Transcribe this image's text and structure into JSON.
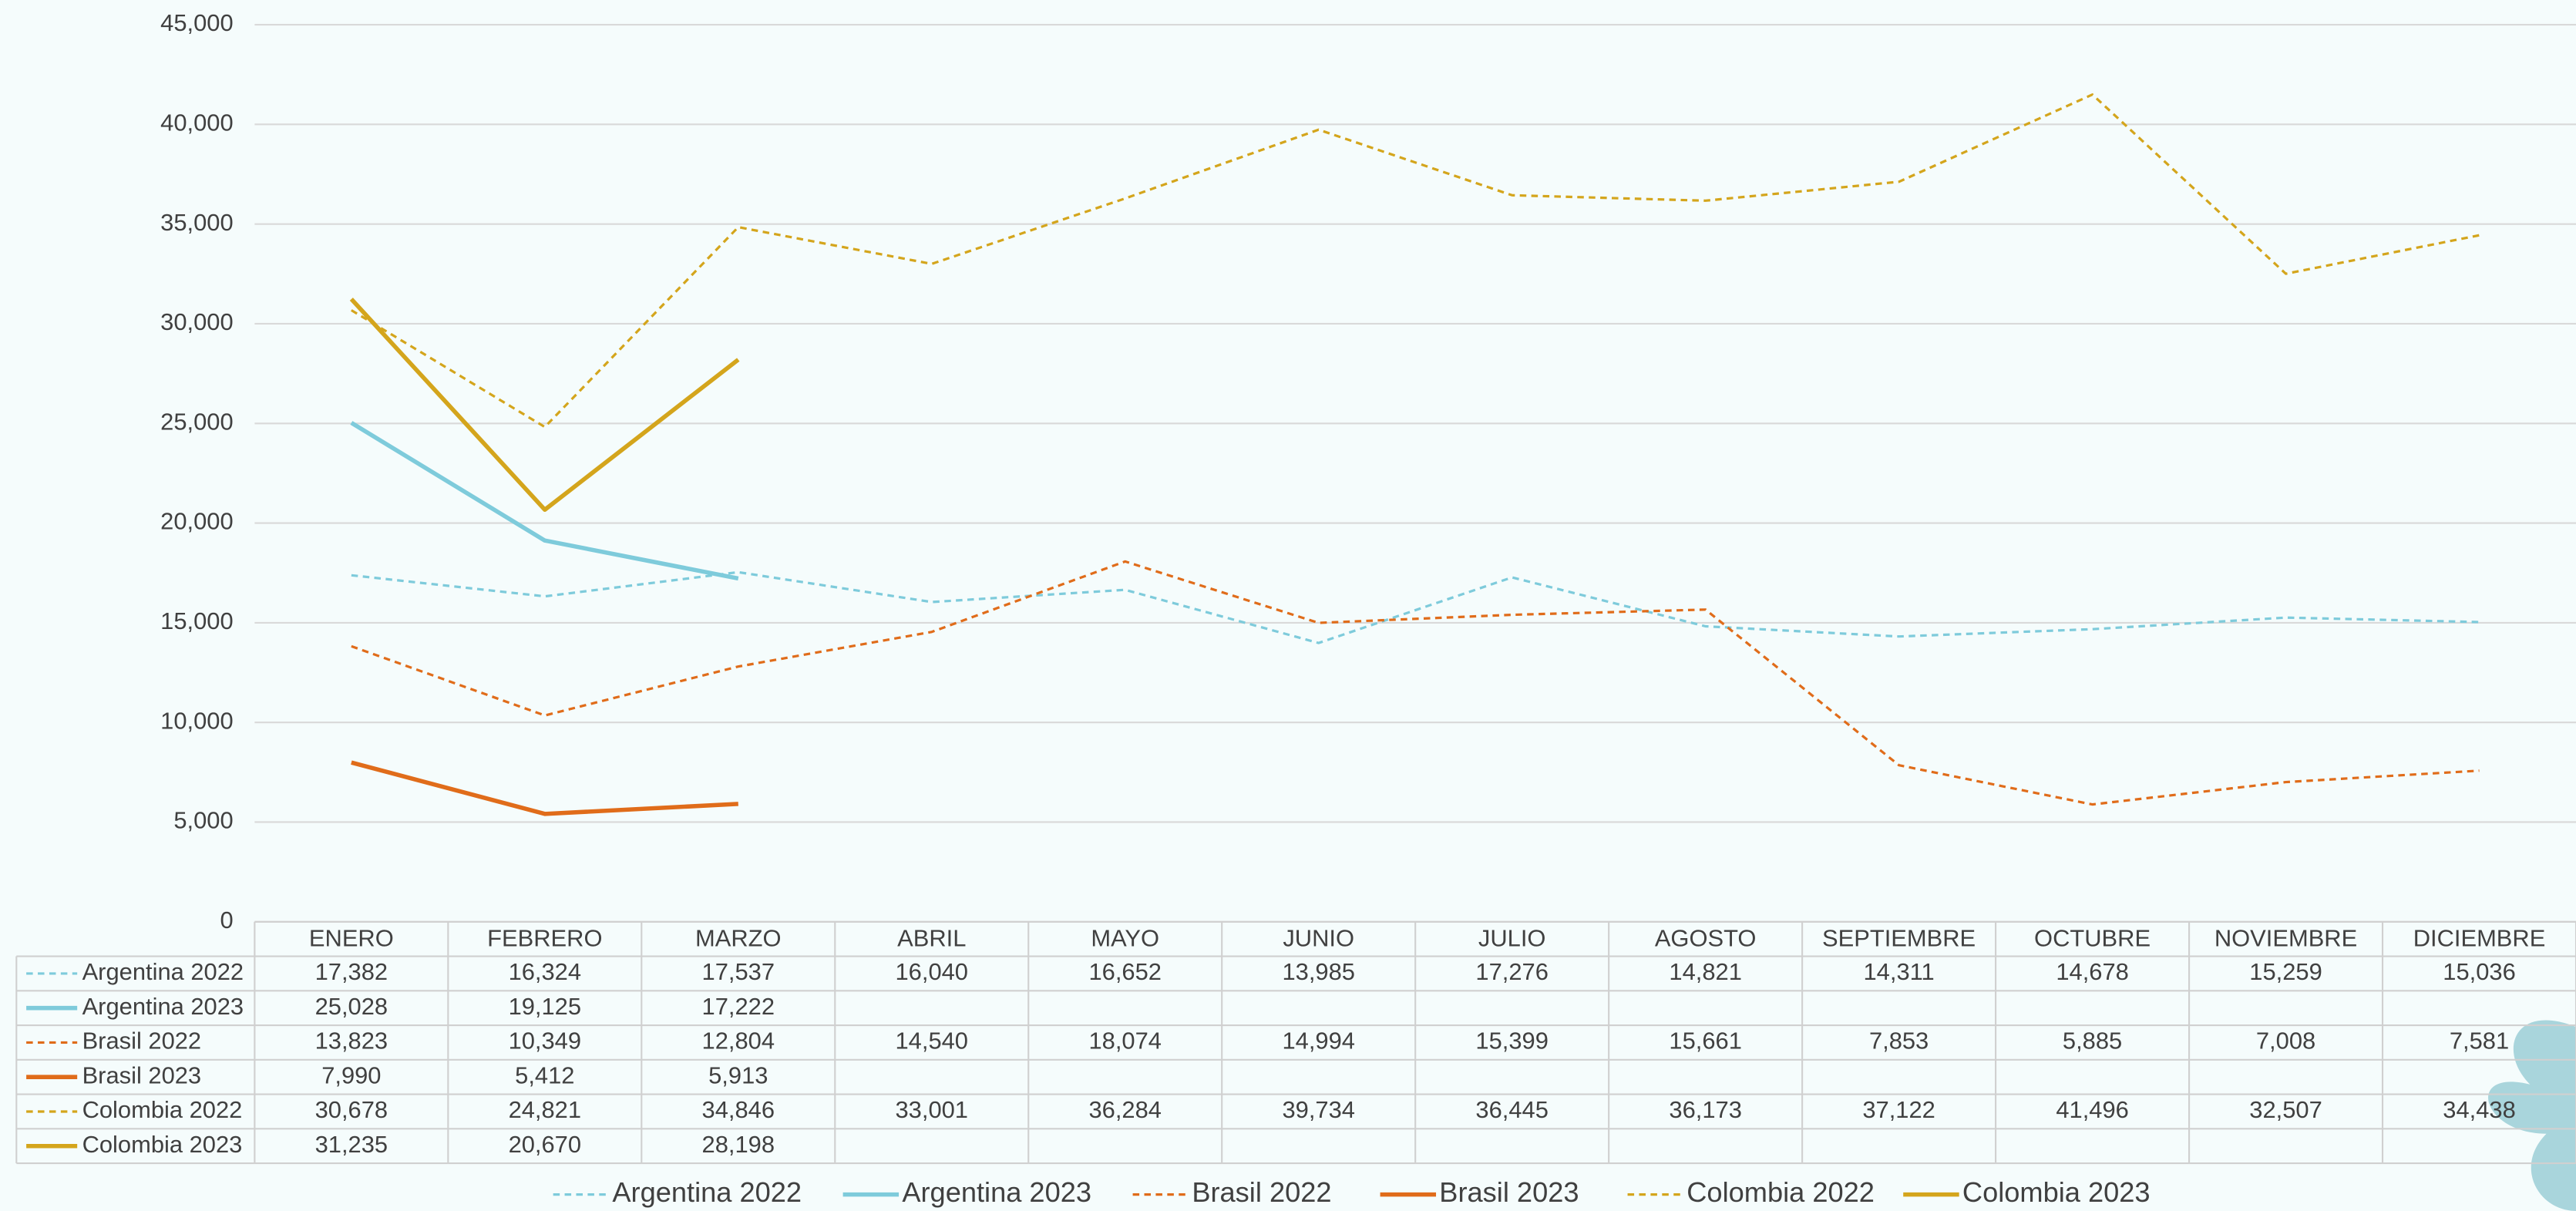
{
  "chart_data": {
    "type": "line",
    "categories": [
      "ENERO",
      "FEBRERO",
      "MARZO",
      "ABRIL",
      "MAYO",
      "JUNIO",
      "JULIO",
      "AGOSTO",
      "SEPTIEMBRE",
      "OCTUBRE",
      "NOVIEMBRE",
      "DICIEMBRE"
    ],
    "series": [
      {
        "name": "Argentina 2022",
        "color": "#7ecbdb",
        "line_style": "dashed",
        "values": [
          17382,
          16324,
          17537,
          16040,
          16652,
          13985,
          17276,
          14821,
          14311,
          14678,
          15259,
          15036
        ],
        "value_labels": [
          "17,382",
          "16,324",
          "17,537",
          "16,040",
          "16,652",
          "13,985",
          "17,276",
          "14,821",
          "14,311",
          "14,678",
          "15,259",
          "15,036"
        ]
      },
      {
        "name": "Argentina 2023",
        "color": "#7ecbdb",
        "line_style": "solid",
        "values": [
          25028,
          19125,
          17222,
          null,
          null,
          null,
          null,
          null,
          null,
          null,
          null,
          null
        ],
        "value_labels": [
          "25,028",
          "19,125",
          "17,222",
          null,
          null,
          null,
          null,
          null,
          null,
          null,
          null,
          null
        ]
      },
      {
        "name": "Brasil 2022",
        "color": "#e06c1a",
        "line_style": "dashed",
        "values": [
          13823,
          10349,
          12804,
          14540,
          18074,
          14994,
          15399,
          15661,
          7853,
          5885,
          7008,
          7581
        ],
        "value_labels": [
          "13,823",
          "10,349",
          "12,804",
          "14,540",
          "18,074",
          "14,994",
          "15,399",
          "15,661",
          "7,853",
          "5,885",
          "7,008",
          "7,581"
        ]
      },
      {
        "name": "Brasil 2023",
        "color": "#e06c1a",
        "line_style": "solid",
        "values": [
          7990,
          5412,
          5913,
          null,
          null,
          null,
          null,
          null,
          null,
          null,
          null,
          null
        ],
        "value_labels": [
          "7,990",
          "5,412",
          "5,913",
          null,
          null,
          null,
          null,
          null,
          null,
          null,
          null,
          null
        ]
      },
      {
        "name": "Colombia 2022",
        "color": "#d4a51c",
        "line_style": "dashed",
        "values": [
          30678,
          24821,
          34846,
          33001,
          36284,
          39734,
          36445,
          36173,
          37122,
          41496,
          32507,
          34438
        ],
        "value_labels": [
          "30,678",
          "24,821",
          "34,846",
          "33,001",
          "36,284",
          "39,734",
          "36,445",
          "36,173",
          "37,122",
          "41,496",
          "32,507",
          "34,438"
        ]
      },
      {
        "name": "Colombia 2023",
        "color": "#d4a51c",
        "line_style": "solid",
        "values": [
          31235,
          20670,
          28198,
          null,
          null,
          null,
          null,
          null,
          null,
          null,
          null,
          null
        ],
        "value_labels": [
          "31,235",
          "20,670",
          "28,198",
          null,
          null,
          null,
          null,
          null,
          null,
          null,
          null,
          null
        ]
      }
    ],
    "ylim": [
      0,
      45000
    ],
    "yticks": [
      0,
      {
        "value": 5000,
        "label": "5,000"
      },
      {
        "value": 10000,
        "label": "10,000"
      },
      {
        "value": 15000,
        "label": "15,000"
      },
      {
        "value": 20000,
        "label": "20,000"
      },
      {
        "value": 25000,
        "label": "25,000"
      },
      {
        "value": 30000,
        "label": "30,000"
      },
      {
        "value": 35000,
        "label": "35,000"
      },
      {
        "value": 40000,
        "label": "40,000"
      },
      {
        "value": 45000,
        "label": "45,000"
      }
    ],
    "grid": true,
    "legend": "bottom"
  }
}
